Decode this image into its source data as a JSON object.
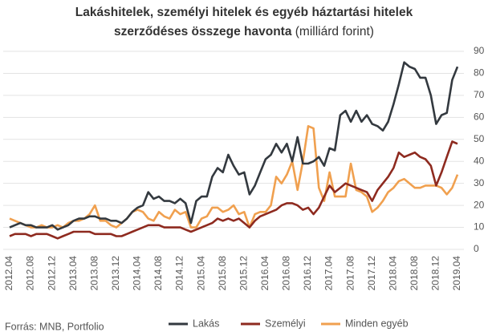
{
  "chart_data": {
    "type": "line",
    "title": "Lakáshitelek, személyi hitelek és egyéb háztartási hitelek",
    "subtitle": "szerződéses összege havonta",
    "unit": "(milliárd forint)",
    "source": "Forrás: MNB, Portfolio",
    "categories": [
      "2012.04",
      null,
      null,
      null,
      "2012.08",
      null,
      null,
      null,
      "2012.12",
      null,
      null,
      null,
      "2013.04",
      null,
      null,
      null,
      "2013.08",
      null,
      null,
      null,
      "2013.12",
      null,
      null,
      null,
      "2014.04",
      null,
      null,
      null,
      "2014.08",
      null,
      null,
      null,
      "2014.12",
      null,
      null,
      null,
      "2015.04",
      null,
      null,
      null,
      "2015.08",
      null,
      null,
      null,
      "2015.12",
      null,
      null,
      null,
      "2016.04",
      null,
      null,
      null,
      "2016.08",
      null,
      null,
      null,
      "2016.12",
      null,
      null,
      null,
      "2017.04",
      null,
      null,
      null,
      "2017.08",
      null,
      null,
      null,
      "2017.12",
      null,
      null,
      null,
      "2018.04",
      null,
      null,
      null,
      "2018.08",
      null,
      null,
      null,
      "2018.12",
      null,
      null,
      null,
      "2019.04"
    ],
    "series": [
      {
        "name": "Lakás",
        "color": "#33393f",
        "values": [
          10,
          11,
          12,
          11,
          11,
          10,
          10,
          10,
          11,
          9,
          10,
          11,
          13,
          14,
          14,
          15,
          15,
          14,
          14,
          13,
          13,
          12,
          14,
          17,
          19,
          20,
          26,
          23,
          24,
          22,
          22,
          21,
          23,
          21,
          12,
          22,
          24,
          24,
          33,
          37,
          35,
          43,
          38,
          34,
          35,
          25,
          29,
          35,
          41,
          43,
          48,
          44,
          48,
          40,
          51,
          39,
          39,
          40,
          42,
          38,
          46,
          45,
          61,
          63,
          58,
          63,
          58,
          61,
          57,
          56,
          54,
          58,
          66,
          75,
          85,
          83,
          82,
          78,
          78,
          70,
          57,
          61,
          62,
          77,
          83
        ]
      },
      {
        "name": "Személyi",
        "color": "#8e2a1f",
        "values": [
          6,
          7,
          7,
          7,
          6,
          7,
          7,
          7,
          6,
          5,
          6,
          7,
          8,
          8,
          8,
          8,
          7,
          7,
          7,
          7,
          6,
          6,
          7,
          8,
          9,
          10,
          11,
          11,
          11,
          10,
          10,
          10,
          10,
          9,
          8,
          9,
          10,
          11,
          12,
          14,
          13,
          14,
          13,
          14,
          12,
          10,
          13,
          15,
          16,
          17,
          18,
          20,
          21,
          21,
          20,
          18,
          19,
          16,
          19,
          24,
          29,
          26,
          28,
          30,
          29,
          28,
          27,
          26,
          22,
          27,
          30,
          33,
          37,
          44,
          42,
          43,
          44,
          42,
          41,
          38,
          29,
          35,
          42,
          49,
          48
        ]
      },
      {
        "name": "Minden egyéb",
        "color": "#f0a04f",
        "values": [
          14,
          13,
          12,
          11,
          10,
          10,
          11,
          10,
          10,
          11,
          10,
          12,
          13,
          13,
          14,
          16,
          20,
          13,
          13,
          11,
          10,
          12,
          14,
          17,
          18,
          17,
          14,
          13,
          17,
          15,
          14,
          18,
          16,
          17,
          10,
          10,
          14,
          15,
          19,
          19,
          17,
          18,
          20,
          16,
          17,
          10,
          16,
          17,
          17,
          20,
          33,
          30,
          34,
          40,
          27,
          40,
          56,
          55,
          28,
          22,
          35,
          24,
          24,
          24,
          39,
          27,
          26,
          24,
          17,
          19,
          22,
          26,
          28,
          31,
          32,
          30,
          28,
          28,
          29,
          29,
          29,
          28,
          25,
          28,
          34
        ]
      }
    ],
    "ylim": [
      0,
      90
    ],
    "yticks": [
      0,
      10,
      20,
      30,
      40,
      50,
      60,
      70,
      80,
      90
    ],
    "grid": true
  }
}
